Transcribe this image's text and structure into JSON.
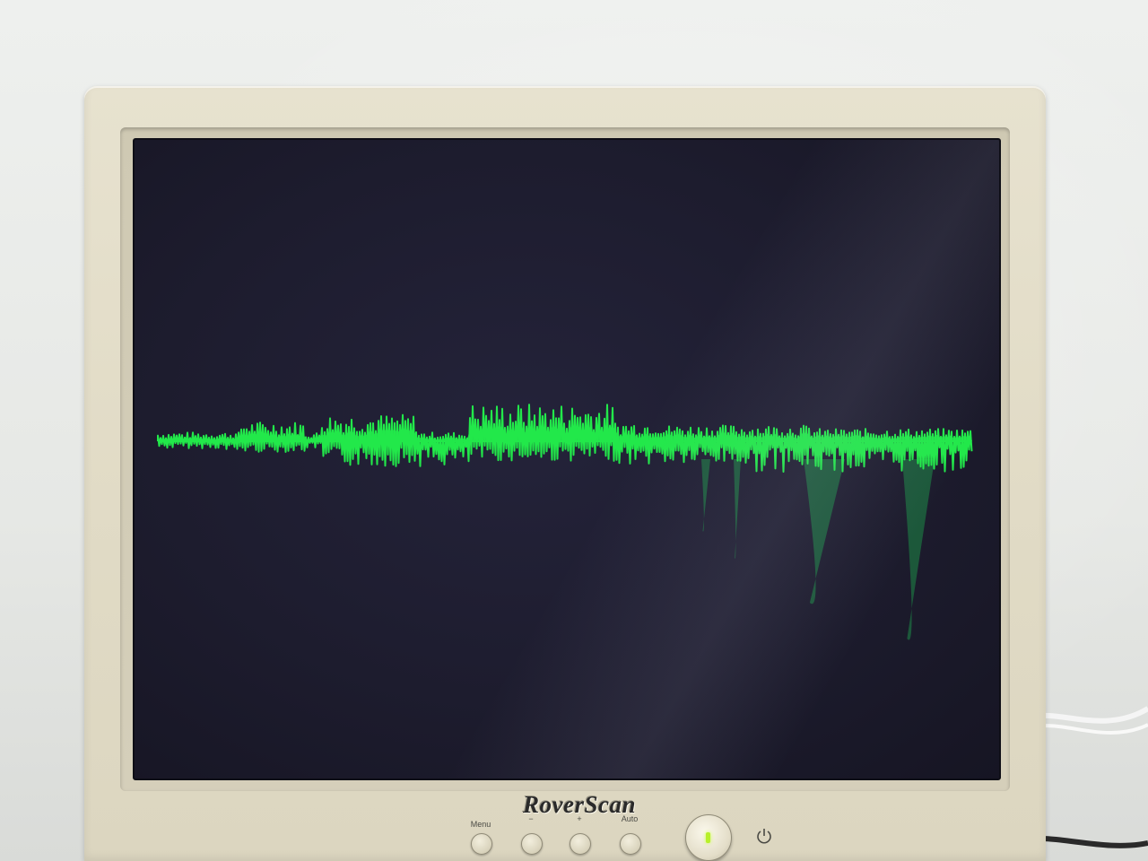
{
  "scene": {
    "subject": "crt-style lcd monitor displaying audio waveform"
  },
  "monitor": {
    "brand": "RoverScan",
    "controls": [
      {
        "label": "Menu",
        "name": "menu"
      },
      {
        "label": "−",
        "name": "minus"
      },
      {
        "label": "+",
        "name": "plus"
      },
      {
        "label": "Auto",
        "name": "auto"
      }
    ],
    "power_led_color": "#b8f02a"
  },
  "waveform": {
    "color": "#22e84a",
    "reflection_color": "#1d8a47",
    "screen_color": "#1e1d2f"
  }
}
